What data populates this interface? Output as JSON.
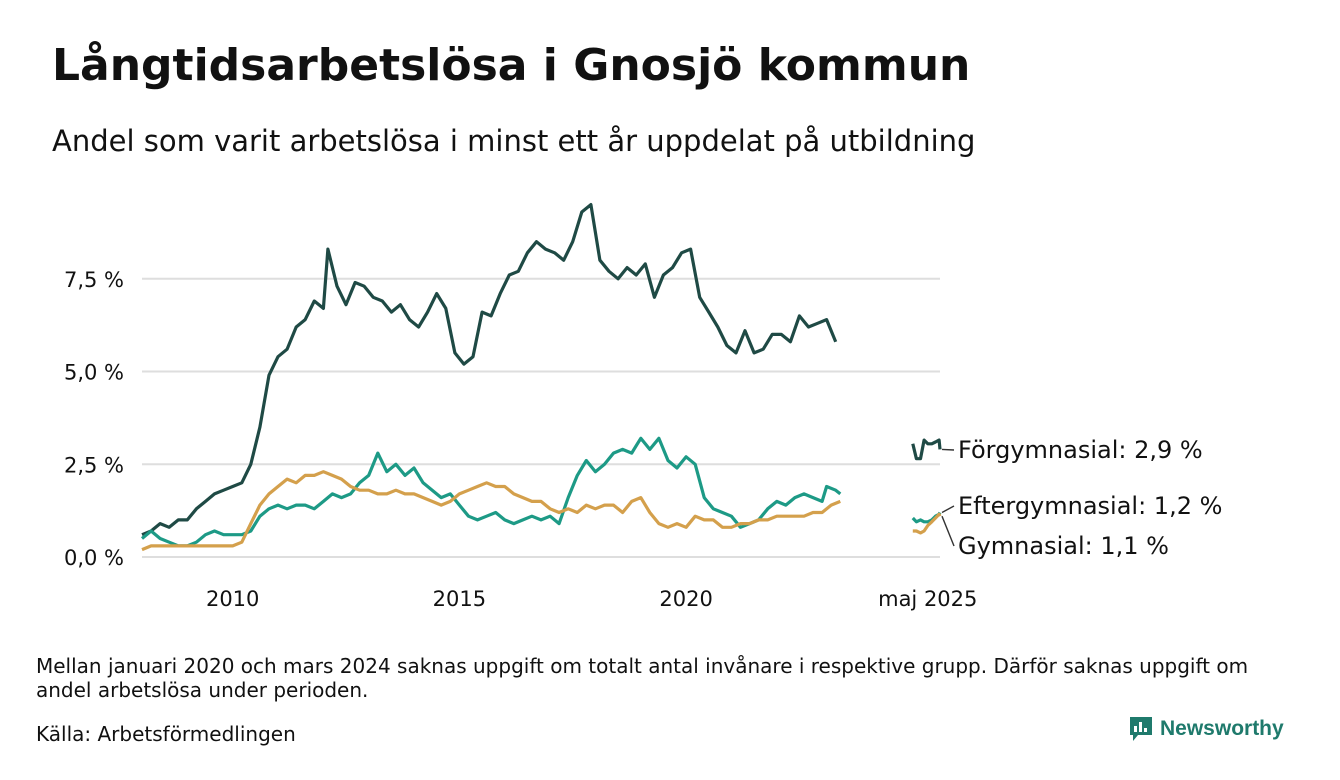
{
  "title": "Långtidsarbetslösa i Gnosjö kommun",
  "subtitle": "Andel som varit arbetslösa i minst ett år uppdelat på utbildning",
  "note": "Mellan januari 2020 och mars 2024 saknas uppgift om totalt antal invånare i respektive grupp. Därför saknas uppgift om andel arbetslösa under perioden.",
  "source": "Källa: Arbetsförmedlingen",
  "brand": "Newsworthy",
  "chart_data": {
    "type": "line",
    "title": "Långtidsarbetslösa i Gnosjö kommun",
    "subtitle": "Andel som varit arbetslösa i minst ett år uppdelat på utbildning",
    "y_ticks": [
      "0,0 %",
      "2,5 %",
      "5,0 %",
      "7,5 %"
    ],
    "y_tick_values": [
      0,
      2.5,
      5,
      7.5
    ],
    "x_ticks": [
      "2010",
      "2015",
      "2020",
      "maj 2025"
    ],
    "x_tick_values": [
      2010,
      2015,
      2020,
      2025.33
    ],
    "ylim": [
      0,
      10
    ],
    "xlim": [
      2008.0,
      2025.6
    ],
    "grid": "horizontal",
    "legend": "end-labels",
    "series": [
      {
        "name": "Förgymnasial",
        "end_label": "Förgymnasial: 2,9 %",
        "color": "#1f4a45",
        "segments": [
          [
            [
              2008.0,
              0.6
            ],
            [
              2008.2,
              0.7
            ],
            [
              2008.4,
              0.9
            ],
            [
              2008.6,
              0.8
            ],
            [
              2008.8,
              1.0
            ],
            [
              2009.0,
              1.0
            ],
            [
              2009.2,
              1.3
            ],
            [
              2009.4,
              1.5
            ],
            [
              2009.6,
              1.7
            ],
            [
              2009.8,
              1.8
            ],
            [
              2010.0,
              1.9
            ],
            [
              2010.2,
              2.0
            ],
            [
              2010.4,
              2.5
            ],
            [
              2010.6,
              3.5
            ],
            [
              2010.8,
              4.9
            ],
            [
              2011.0,
              5.4
            ],
            [
              2011.2,
              5.6
            ],
            [
              2011.4,
              6.2
            ],
            [
              2011.6,
              6.4
            ],
            [
              2011.8,
              6.9
            ],
            [
              2012.0,
              6.7
            ],
            [
              2012.1,
              8.3
            ],
            [
              2012.3,
              7.3
            ],
            [
              2012.5,
              6.8
            ],
            [
              2012.7,
              7.4
            ],
            [
              2012.9,
              7.3
            ],
            [
              2013.1,
              7.0
            ],
            [
              2013.3,
              6.9
            ],
            [
              2013.5,
              6.6
            ],
            [
              2013.7,
              6.8
            ],
            [
              2013.9,
              6.4
            ],
            [
              2014.1,
              6.2
            ],
            [
              2014.3,
              6.6
            ],
            [
              2014.5,
              7.1
            ],
            [
              2014.7,
              6.7
            ],
            [
              2014.9,
              5.5
            ],
            [
              2015.1,
              5.2
            ],
            [
              2015.3,
              5.4
            ],
            [
              2015.5,
              6.6
            ],
            [
              2015.7,
              6.5
            ],
            [
              2015.9,
              7.1
            ],
            [
              2016.1,
              7.6
            ],
            [
              2016.3,
              7.7
            ],
            [
              2016.5,
              8.2
            ],
            [
              2016.7,
              8.5
            ],
            [
              2016.9,
              8.3
            ],
            [
              2017.1,
              8.2
            ],
            [
              2017.3,
              8.0
            ],
            [
              2017.5,
              8.5
            ],
            [
              2017.7,
              9.3
            ],
            [
              2017.9,
              9.5
            ],
            [
              2018.1,
              8.0
            ],
            [
              2018.3,
              7.7
            ],
            [
              2018.5,
              7.5
            ],
            [
              2018.7,
              7.8
            ],
            [
              2018.9,
              7.6
            ],
            [
              2019.1,
              7.9
            ],
            [
              2019.3,
              7.0
            ],
            [
              2019.5,
              7.6
            ],
            [
              2019.7,
              7.8
            ],
            [
              2019.9,
              8.2
            ],
            [
              2020.1,
              8.3
            ],
            [
              2020.3,
              7.0
            ],
            [
              2020.5,
              6.6
            ],
            [
              2020.7,
              6.2
            ],
            [
              2020.9,
              5.7
            ],
            [
              2021.1,
              5.5
            ],
            [
              2021.3,
              6.1
            ],
            [
              2021.5,
              5.5
            ],
            [
              2021.7,
              5.6
            ],
            [
              2021.9,
              6.0
            ],
            [
              2022.1,
              6.0
            ],
            [
              2022.3,
              5.8
            ],
            [
              2022.5,
              6.5
            ],
            [
              2022.7,
              6.2
            ],
            [
              2022.9,
              6.3
            ],
            [
              2023.1,
              6.4
            ],
            [
              2023.3,
              5.8
            ]
          ],
          [
            [
              2025.0,
              3.05
            ],
            [
              2025.08,
              2.65
            ],
            [
              2025.17,
              2.65
            ],
            [
              2025.25,
              3.15
            ],
            [
              2025.33,
              3.05
            ],
            [
              2025.42,
              3.05
            ],
            [
              2025.5,
              3.1
            ],
            [
              2025.58,
              3.15
            ],
            [
              2025.6,
              2.9
            ]
          ]
        ]
      },
      {
        "name": "Eftergymnasial",
        "end_label": "Eftergymnasial: 1,2 %",
        "color": "#1d9a86",
        "segments": [
          [
            [
              2008.0,
              0.5
            ],
            [
              2008.2,
              0.7
            ],
            [
              2008.4,
              0.5
            ],
            [
              2008.6,
              0.4
            ],
            [
              2008.8,
              0.3
            ],
            [
              2009.0,
              0.3
            ],
            [
              2009.2,
              0.4
            ],
            [
              2009.4,
              0.6
            ],
            [
              2009.6,
              0.7
            ],
            [
              2009.8,
              0.6
            ],
            [
              2010.0,
              0.6
            ],
            [
              2010.2,
              0.6
            ],
            [
              2010.4,
              0.7
            ],
            [
              2010.6,
              1.1
            ],
            [
              2010.8,
              1.3
            ],
            [
              2011.0,
              1.4
            ],
            [
              2011.2,
              1.3
            ],
            [
              2011.4,
              1.4
            ],
            [
              2011.6,
              1.4
            ],
            [
              2011.8,
              1.3
            ],
            [
              2012.0,
              1.5
            ],
            [
              2012.2,
              1.7
            ],
            [
              2012.4,
              1.6
            ],
            [
              2012.6,
              1.7
            ],
            [
              2012.8,
              2.0
            ],
            [
              2013.0,
              2.2
            ],
            [
              2013.2,
              2.8
            ],
            [
              2013.4,
              2.3
            ],
            [
              2013.6,
              2.5
            ],
            [
              2013.8,
              2.2
            ],
            [
              2014.0,
              2.4
            ],
            [
              2014.2,
              2.0
            ],
            [
              2014.4,
              1.8
            ],
            [
              2014.6,
              1.6
            ],
            [
              2014.8,
              1.7
            ],
            [
              2015.0,
              1.4
            ],
            [
              2015.2,
              1.1
            ],
            [
              2015.4,
              1.0
            ],
            [
              2015.6,
              1.1
            ],
            [
              2015.8,
              1.2
            ],
            [
              2016.0,
              1.0
            ],
            [
              2016.2,
              0.9
            ],
            [
              2016.4,
              1.0
            ],
            [
              2016.6,
              1.1
            ],
            [
              2016.8,
              1.0
            ],
            [
              2017.0,
              1.1
            ],
            [
              2017.2,
              0.9
            ],
            [
              2017.4,
              1.6
            ],
            [
              2017.6,
              2.2
            ],
            [
              2017.8,
              2.6
            ],
            [
              2018.0,
              2.3
            ],
            [
              2018.2,
              2.5
            ],
            [
              2018.4,
              2.8
            ],
            [
              2018.6,
              2.9
            ],
            [
              2018.8,
              2.8
            ],
            [
              2019.0,
              3.2
            ],
            [
              2019.2,
              2.9
            ],
            [
              2019.4,
              3.2
            ],
            [
              2019.6,
              2.6
            ],
            [
              2019.8,
              2.4
            ],
            [
              2020.0,
              2.7
            ],
            [
              2020.2,
              2.5
            ],
            [
              2020.4,
              1.6
            ],
            [
              2020.6,
              1.3
            ],
            [
              2020.8,
              1.2
            ],
            [
              2021.0,
              1.1
            ],
            [
              2021.2,
              0.8
            ],
            [
              2021.4,
              0.9
            ],
            [
              2021.6,
              1.0
            ],
            [
              2021.8,
              1.3
            ],
            [
              2022.0,
              1.5
            ],
            [
              2022.2,
              1.4
            ],
            [
              2022.4,
              1.6
            ],
            [
              2022.6,
              1.7
            ],
            [
              2022.8,
              1.6
            ],
            [
              2023.0,
              1.5
            ],
            [
              2023.1,
              1.9
            ],
            [
              2023.3,
              1.8
            ],
            [
              2023.4,
              1.7
            ]
          ],
          [
            [
              2025.0,
              1.05
            ],
            [
              2025.08,
              0.95
            ],
            [
              2025.17,
              1.0
            ],
            [
              2025.25,
              0.95
            ],
            [
              2025.33,
              0.95
            ],
            [
              2025.42,
              1.0
            ],
            [
              2025.5,
              1.1
            ],
            [
              2025.58,
              1.15
            ],
            [
              2025.6,
              1.2
            ]
          ]
        ]
      },
      {
        "name": "Gymnasial",
        "end_label": "Gymnasial: 1,1 %",
        "color": "#d4a04c",
        "segments": [
          [
            [
              2008.0,
              0.2
            ],
            [
              2008.2,
              0.3
            ],
            [
              2008.4,
              0.3
            ],
            [
              2008.6,
              0.3
            ],
            [
              2008.8,
              0.3
            ],
            [
              2009.0,
              0.3
            ],
            [
              2009.2,
              0.3
            ],
            [
              2009.4,
              0.3
            ],
            [
              2009.6,
              0.3
            ],
            [
              2009.8,
              0.3
            ],
            [
              2010.0,
              0.3
            ],
            [
              2010.2,
              0.4
            ],
            [
              2010.4,
              0.9
            ],
            [
              2010.6,
              1.4
            ],
            [
              2010.8,
              1.7
            ],
            [
              2011.0,
              1.9
            ],
            [
              2011.2,
              2.1
            ],
            [
              2011.4,
              2.0
            ],
            [
              2011.6,
              2.2
            ],
            [
              2011.8,
              2.2
            ],
            [
              2012.0,
              2.3
            ],
            [
              2012.2,
              2.2
            ],
            [
              2012.4,
              2.1
            ],
            [
              2012.6,
              1.9
            ],
            [
              2012.8,
              1.8
            ],
            [
              2013.0,
              1.8
            ],
            [
              2013.2,
              1.7
            ],
            [
              2013.4,
              1.7
            ],
            [
              2013.6,
              1.8
            ],
            [
              2013.8,
              1.7
            ],
            [
              2014.0,
              1.7
            ],
            [
              2014.2,
              1.6
            ],
            [
              2014.4,
              1.5
            ],
            [
              2014.6,
              1.4
            ],
            [
              2014.8,
              1.5
            ],
            [
              2015.0,
              1.7
            ],
            [
              2015.2,
              1.8
            ],
            [
              2015.4,
              1.9
            ],
            [
              2015.6,
              2.0
            ],
            [
              2015.8,
              1.9
            ],
            [
              2016.0,
              1.9
            ],
            [
              2016.2,
              1.7
            ],
            [
              2016.4,
              1.6
            ],
            [
              2016.6,
              1.5
            ],
            [
              2016.8,
              1.5
            ],
            [
              2017.0,
              1.3
            ],
            [
              2017.2,
              1.2
            ],
            [
              2017.4,
              1.3
            ],
            [
              2017.6,
              1.2
            ],
            [
              2017.8,
              1.4
            ],
            [
              2018.0,
              1.3
            ],
            [
              2018.2,
              1.4
            ],
            [
              2018.4,
              1.4
            ],
            [
              2018.6,
              1.2
            ],
            [
              2018.8,
              1.5
            ],
            [
              2019.0,
              1.6
            ],
            [
              2019.2,
              1.2
            ],
            [
              2019.4,
              0.9
            ],
            [
              2019.6,
              0.8
            ],
            [
              2019.8,
              0.9
            ],
            [
              2020.0,
              0.8
            ],
            [
              2020.2,
              1.1
            ],
            [
              2020.4,
              1.0
            ],
            [
              2020.6,
              1.0
            ],
            [
              2020.8,
              0.8
            ],
            [
              2021.0,
              0.8
            ],
            [
              2021.2,
              0.9
            ],
            [
              2021.4,
              0.9
            ],
            [
              2021.6,
              1.0
            ],
            [
              2021.8,
              1.0
            ],
            [
              2022.0,
              1.1
            ],
            [
              2022.2,
              1.1
            ],
            [
              2022.4,
              1.1
            ],
            [
              2022.6,
              1.1
            ],
            [
              2022.8,
              1.2
            ],
            [
              2023.0,
              1.2
            ],
            [
              2023.2,
              1.4
            ],
            [
              2023.4,
              1.5
            ]
          ],
          [
            [
              2025.0,
              0.7
            ],
            [
              2025.08,
              0.7
            ],
            [
              2025.17,
              0.65
            ],
            [
              2025.25,
              0.7
            ],
            [
              2025.33,
              0.85
            ],
            [
              2025.42,
              0.95
            ],
            [
              2025.5,
              1.05
            ],
            [
              2025.58,
              1.15
            ],
            [
              2025.6,
              1.1
            ]
          ]
        ]
      }
    ]
  }
}
